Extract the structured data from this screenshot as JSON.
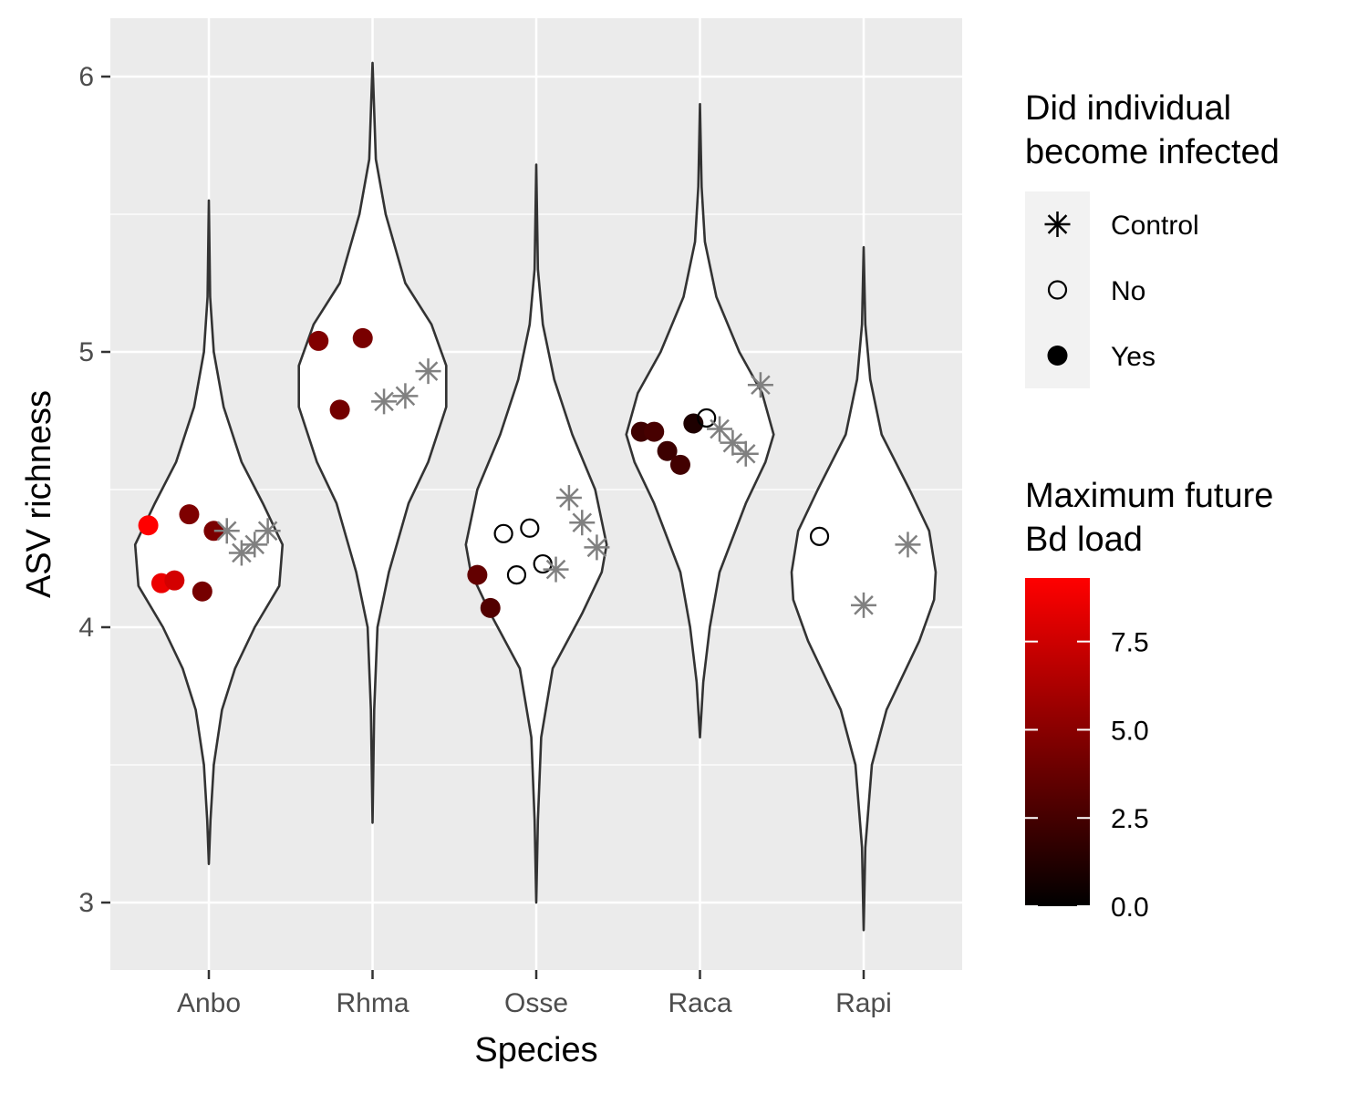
{
  "chart_data": {
    "type": "scatter",
    "subtype": "violin-with-jittered-points",
    "xlabel": "Species",
    "ylabel": "ASV richness",
    "categories": [
      "Anbo",
      "Rhma",
      "Osse",
      "Raca",
      "Rapi"
    ],
    "yticks": [
      3,
      4,
      5,
      6
    ],
    "ylim": [
      2.75,
      6.2
    ],
    "grid": true,
    "colors": {
      "panel": "#ebebeb",
      "grid": "#ffffff",
      "violin_fill": "#ffffff",
      "violin_stroke": "#333333",
      "control": "#808080",
      "colorbar_low": "#000000",
      "colorbar_high": "#ff0000"
    },
    "violins": [
      {
        "category": "Anbo",
        "range": [
          3.14,
          5.55
        ],
        "profile": [
          [
            3.14,
            0.0
          ],
          [
            3.3,
            0.01
          ],
          [
            3.5,
            0.03
          ],
          [
            3.7,
            0.08
          ],
          [
            3.85,
            0.16
          ],
          [
            4.0,
            0.28
          ],
          [
            4.15,
            0.43
          ],
          [
            4.3,
            0.45
          ],
          [
            4.45,
            0.33
          ],
          [
            4.6,
            0.2
          ],
          [
            4.8,
            0.09
          ],
          [
            5.0,
            0.03
          ],
          [
            5.2,
            0.008
          ],
          [
            5.55,
            0.0
          ]
        ]
      },
      {
        "category": "Rhma",
        "range": [
          3.29,
          6.05
        ],
        "profile": [
          [
            3.29,
            0.0
          ],
          [
            3.7,
            0.01
          ],
          [
            4.0,
            0.03
          ],
          [
            4.2,
            0.1
          ],
          [
            4.45,
            0.22
          ],
          [
            4.6,
            0.34
          ],
          [
            4.8,
            0.45
          ],
          [
            4.95,
            0.45
          ],
          [
            5.1,
            0.36
          ],
          [
            5.25,
            0.2
          ],
          [
            5.5,
            0.08
          ],
          [
            5.7,
            0.02
          ],
          [
            6.05,
            0.0
          ]
        ]
      },
      {
        "category": "Osse",
        "range": [
          3.0,
          5.68
        ],
        "profile": [
          [
            3.0,
            0.0
          ],
          [
            3.3,
            0.01
          ],
          [
            3.6,
            0.03
          ],
          [
            3.85,
            0.1
          ],
          [
            4.05,
            0.28
          ],
          [
            4.2,
            0.4
          ],
          [
            4.3,
            0.43
          ],
          [
            4.5,
            0.36
          ],
          [
            4.7,
            0.22
          ],
          [
            4.9,
            0.11
          ],
          [
            5.1,
            0.04
          ],
          [
            5.3,
            0.01
          ],
          [
            5.68,
            0.0
          ]
        ]
      },
      {
        "category": "Raca",
        "range": [
          3.6,
          5.9
        ],
        "profile": [
          [
            3.6,
            0.0
          ],
          [
            3.8,
            0.02
          ],
          [
            4.0,
            0.06
          ],
          [
            4.2,
            0.12
          ],
          [
            4.45,
            0.28
          ],
          [
            4.6,
            0.4
          ],
          [
            4.7,
            0.45
          ],
          [
            4.85,
            0.38
          ],
          [
            5.0,
            0.24
          ],
          [
            5.2,
            0.1
          ],
          [
            5.4,
            0.03
          ],
          [
            5.6,
            0.01
          ],
          [
            5.9,
            0.0
          ]
        ]
      },
      {
        "category": "Rapi",
        "range": [
          2.9,
          5.38
        ],
        "profile": [
          [
            2.9,
            0.0
          ],
          [
            3.2,
            0.01
          ],
          [
            3.5,
            0.05
          ],
          [
            3.7,
            0.14
          ],
          [
            3.95,
            0.34
          ],
          [
            4.1,
            0.43
          ],
          [
            4.2,
            0.44
          ],
          [
            4.35,
            0.4
          ],
          [
            4.5,
            0.28
          ],
          [
            4.7,
            0.11
          ],
          [
            4.9,
            0.04
          ],
          [
            5.1,
            0.01
          ],
          [
            5.38,
            0.0
          ]
        ]
      }
    ],
    "points": [
      {
        "species": "Anbo",
        "xoff": -0.37,
        "y": 4.37,
        "group": "Yes",
        "bd_load": 9.3
      },
      {
        "species": "Anbo",
        "xoff": -0.29,
        "y": 4.16,
        "group": "Yes",
        "bd_load": 8.6
      },
      {
        "species": "Anbo",
        "xoff": -0.21,
        "y": 4.17,
        "group": "Yes",
        "bd_load": 7.7
      },
      {
        "species": "Anbo",
        "xoff": -0.12,
        "y": 4.41,
        "group": "Yes",
        "bd_load": 4.6
      },
      {
        "species": "Anbo",
        "xoff": -0.04,
        "y": 4.13,
        "group": "Yes",
        "bd_load": 4.3
      },
      {
        "species": "Anbo",
        "xoff": 0.03,
        "y": 4.35,
        "group": "Yes",
        "bd_load": 4.5
      },
      {
        "species": "Anbo",
        "xoff": 0.11,
        "y": 4.35,
        "group": "Control",
        "bd_load": null
      },
      {
        "species": "Anbo",
        "xoff": 0.2,
        "y": 4.27,
        "group": "Control",
        "bd_load": null
      },
      {
        "species": "Anbo",
        "xoff": 0.28,
        "y": 4.3,
        "group": "Control",
        "bd_load": null
      },
      {
        "species": "Anbo",
        "xoff": 0.36,
        "y": 4.35,
        "group": "Control",
        "bd_load": null
      },
      {
        "species": "Rhma",
        "xoff": -0.33,
        "y": 5.04,
        "group": "Yes",
        "bd_load": 4.7
      },
      {
        "species": "Rhma",
        "xoff": -0.2,
        "y": 4.79,
        "group": "Yes",
        "bd_load": 4.2
      },
      {
        "species": "Rhma",
        "xoff": -0.06,
        "y": 5.05,
        "group": "Yes",
        "bd_load": 4.4
      },
      {
        "species": "Rhma",
        "xoff": 0.07,
        "y": 4.82,
        "group": "Control",
        "bd_load": null
      },
      {
        "species": "Rhma",
        "xoff": 0.2,
        "y": 4.84,
        "group": "Control",
        "bd_load": null
      },
      {
        "species": "Rhma",
        "xoff": 0.34,
        "y": 4.93,
        "group": "Control",
        "bd_load": null
      },
      {
        "species": "Osse",
        "xoff": -0.36,
        "y": 4.19,
        "group": "Yes",
        "bd_load": 3.6
      },
      {
        "species": "Osse",
        "xoff": -0.28,
        "y": 4.07,
        "group": "Yes",
        "bd_load": 3.0
      },
      {
        "species": "Osse",
        "xoff": -0.2,
        "y": 4.34,
        "group": "No",
        "bd_load": null
      },
      {
        "species": "Osse",
        "xoff": -0.12,
        "y": 4.19,
        "group": "No",
        "bd_load": null
      },
      {
        "species": "Osse",
        "xoff": -0.04,
        "y": 4.36,
        "group": "No",
        "bd_load": null
      },
      {
        "species": "Osse",
        "xoff": 0.04,
        "y": 4.23,
        "group": "No",
        "bd_load": null
      },
      {
        "species": "Osse",
        "xoff": 0.12,
        "y": 4.21,
        "group": "Control",
        "bd_load": null
      },
      {
        "species": "Osse",
        "xoff": 0.2,
        "y": 4.47,
        "group": "Control",
        "bd_load": null
      },
      {
        "species": "Osse",
        "xoff": 0.28,
        "y": 4.38,
        "group": "Control",
        "bd_load": null
      },
      {
        "species": "Osse",
        "xoff": 0.37,
        "y": 4.29,
        "group": "Control",
        "bd_load": null
      },
      {
        "species": "Raca",
        "xoff": -0.36,
        "y": 4.71,
        "group": "Yes",
        "bd_load": 2.3
      },
      {
        "species": "Raca",
        "xoff": -0.28,
        "y": 4.71,
        "group": "Yes",
        "bd_load": 2.6
      },
      {
        "species": "Raca",
        "xoff": -0.2,
        "y": 4.64,
        "group": "Yes",
        "bd_load": 2.2
      },
      {
        "species": "Raca",
        "xoff": -0.12,
        "y": 4.59,
        "group": "Yes",
        "bd_load": 2.4
      },
      {
        "species": "Raca",
        "xoff": -0.04,
        "y": 4.74,
        "group": "Yes",
        "bd_load": 1.1
      },
      {
        "species": "Raca",
        "xoff": 0.04,
        "y": 4.76,
        "group": "No",
        "bd_load": null
      },
      {
        "species": "Raca",
        "xoff": 0.12,
        "y": 4.72,
        "group": "Control",
        "bd_load": null
      },
      {
        "species": "Raca",
        "xoff": 0.2,
        "y": 4.67,
        "group": "Control",
        "bd_load": null
      },
      {
        "species": "Raca",
        "xoff": 0.28,
        "y": 4.63,
        "group": "Control",
        "bd_load": null
      },
      {
        "species": "Raca",
        "xoff": 0.37,
        "y": 4.88,
        "group": "Control",
        "bd_load": null
      },
      {
        "species": "Rapi",
        "xoff": -0.27,
        "y": 4.33,
        "group": "No",
        "bd_load": null
      },
      {
        "species": "Rapi",
        "xoff": 0.0,
        "y": 4.08,
        "group": "Control",
        "bd_load": null
      },
      {
        "species": "Rapi",
        "xoff": 0.27,
        "y": 4.3,
        "group": "Control",
        "bd_load": null
      }
    ],
    "legend_shape": {
      "title_lines": [
        "Did individual",
        "become infected"
      ],
      "entries": [
        {
          "label": "Control",
          "shape": "asterisk"
        },
        {
          "label": "No",
          "shape": "open-circle"
        },
        {
          "label": "Yes",
          "shape": "filled-circle"
        }
      ]
    },
    "legend_color": {
      "title_lines": [
        "Maximum future",
        "Bd load"
      ],
      "range": [
        0,
        9.3
      ],
      "ticks": [
        0,
        2.5,
        5,
        7.5
      ],
      "tick_labels": [
        "0.0",
        "2.5",
        "5.0",
        "7.5"
      ]
    }
  }
}
